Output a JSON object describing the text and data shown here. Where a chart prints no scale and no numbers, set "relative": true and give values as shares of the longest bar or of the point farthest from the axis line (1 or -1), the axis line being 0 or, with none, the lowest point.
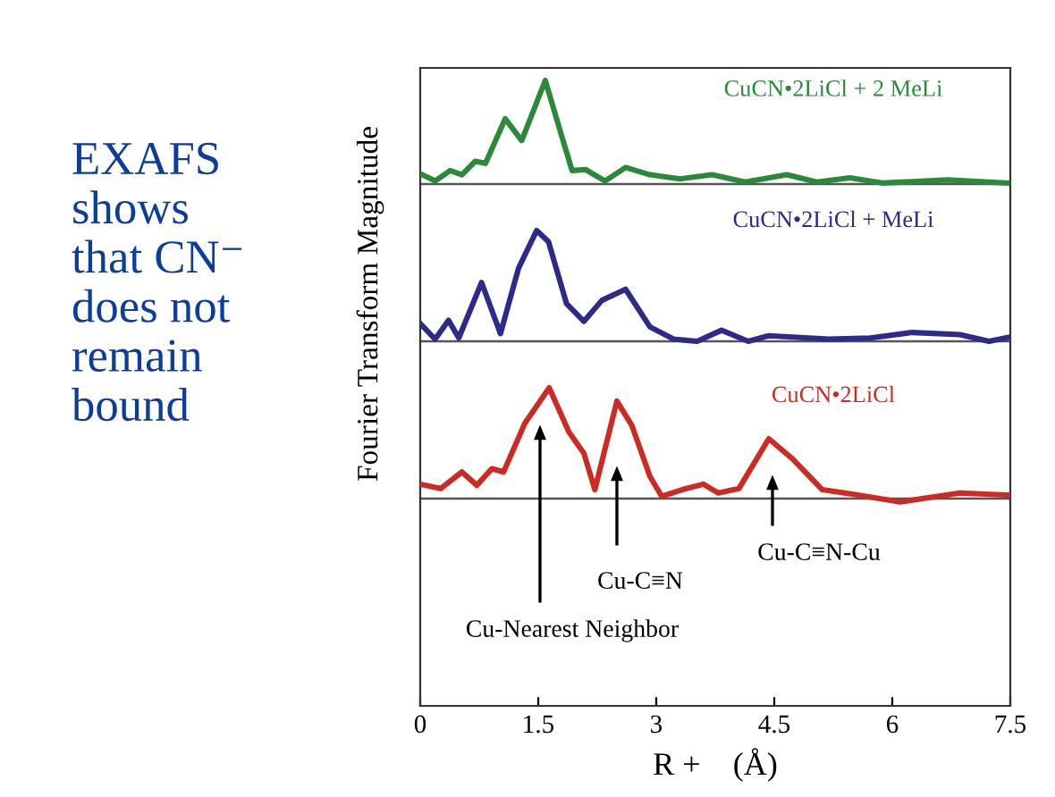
{
  "chart_data": [
    {
      "type": "line",
      "relative": true,
      "title": "EXAFS\nshows\nthat CN⁻\ndoes not\nremain\nbound",
      "xlim": [
        0,
        7.5
      ],
      "tick_labels": false,
      "series": [
        {
          "name": "CuCN•2LiCl + 2 MeLi",
          "color": "#2a8a3a",
          "x": [
            0,
            0.19,
            0.38,
            0.53,
            0.7,
            0.83,
            1.08,
            1.29,
            1.59,
            1.78,
            1.93,
            2.1,
            2.35,
            2.61,
            2.92,
            3.3,
            3.71,
            4.13,
            4.66,
            5.04,
            5.46,
            5.87,
            6.7,
            7.46
          ],
          "values": [
            0.1,
            0.03,
            0.13,
            0.09,
            0.22,
            0.2,
            0.63,
            0.42,
            1.0,
            0.51,
            0.13,
            0.14,
            0.03,
            0.16,
            0.09,
            0.05,
            0.09,
            0.02,
            0.09,
            0.02,
            0.06,
            0.01,
            0.04,
            0.01
          ]
        }
      ]
    },
    {
      "type": "line",
      "relative": true,
      "ylabel": "Fourier Transform Magnitude",
      "xlim": [
        0,
        7.5
      ],
      "tick_labels": false,
      "series": [
        {
          "name": "CuCN•2LiCl + MeLi",
          "color": "#2e2a8a",
          "x": [
            0,
            0.19,
            0.36,
            0.49,
            0.78,
            1.02,
            1.25,
            1.48,
            1.63,
            1.86,
            2.08,
            2.31,
            2.61,
            2.92,
            3.22,
            3.52,
            3.83,
            4.17,
            4.43,
            5.19,
            5.72,
            6.25,
            6.86,
            7.23,
            7.5
          ],
          "values": [
            0.16,
            0.02,
            0.19,
            0.03,
            0.53,
            0.07,
            0.66,
            1.0,
            0.9,
            0.34,
            0.18,
            0.37,
            0.47,
            0.13,
            0.02,
            0,
            0.1,
            0,
            0.05,
            0.02,
            0.03,
            0.08,
            0.06,
            0,
            0.04
          ]
        }
      ]
    },
    {
      "type": "line",
      "relative": true,
      "xlabel": "R +    (Å)",
      "xlim": [
        0,
        7.5
      ],
      "xticks": [
        0,
        1.5,
        3,
        4.5,
        6,
        7.5
      ],
      "tick_labels": "x",
      "series": [
        {
          "name": "CuCN•2LiCl",
          "color": "#cc2a22",
          "x": [
            0,
            0.26,
            0.53,
            0.72,
            0.91,
            1.06,
            1.33,
            1.64,
            1.89,
            2.08,
            2.22,
            2.5,
            2.69,
            2.92,
            3.07,
            3.33,
            3.6,
            3.79,
            4.05,
            4.43,
            4.73,
            5.11,
            5.49,
            6.1,
            6.86,
            7.5
          ],
          "values": [
            0.13,
            0.09,
            0.24,
            0.12,
            0.27,
            0.24,
            0.68,
            1.0,
            0.6,
            0.41,
            0.08,
            0.88,
            0.66,
            0.2,
            0.02,
            0.08,
            0.13,
            0.05,
            0.09,
            0.54,
            0.36,
            0.08,
            0.04,
            -0.03,
            0.05,
            0.03
          ]
        }
      ],
      "annotations": [
        "Cu-Nearest Neighbor",
        "Cu-C≡N",
        "Cu-C≡N-Cu"
      ]
    }
  ]
}
